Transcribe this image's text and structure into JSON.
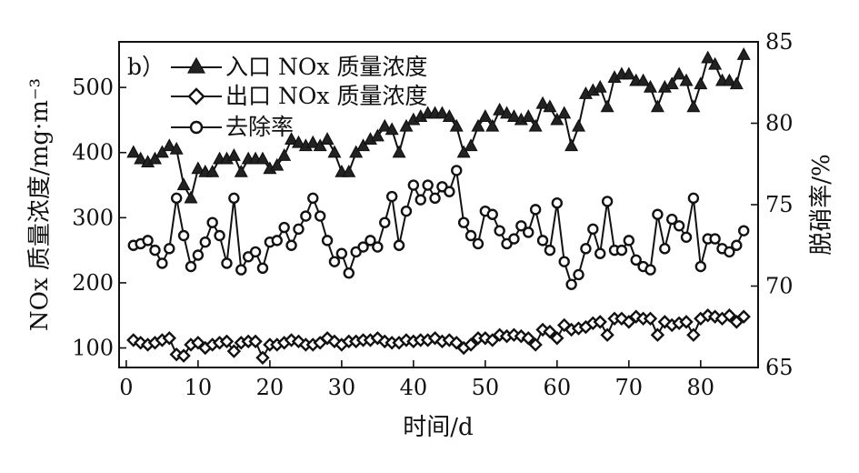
{
  "chart_data": {
    "type": "line",
    "panel_label": "b）",
    "xlabel": "时间/d",
    "ylabel_left": "NOx 质量浓度/mg·m⁻³",
    "ylabel_right": "脱硝率/%",
    "xlim": [
      -1,
      88
    ],
    "ylim_left": [
      70,
      570
    ],
    "ylim_right": [
      65,
      85
    ],
    "x_ticks": [
      0,
      10,
      20,
      30,
      40,
      50,
      60,
      70,
      80
    ],
    "y_left_ticks": [
      100,
      200,
      300,
      400,
      500
    ],
    "y_right_ticks": [
      65,
      70,
      75,
      80,
      85
    ],
    "legend_position": "top-left",
    "series": [
      {
        "name": "入口 NOx 质量浓度",
        "axis": "left",
        "marker": "triangle",
        "x": [
          1,
          2,
          3,
          4,
          5,
          6,
          7,
          8,
          9,
          10,
          11,
          12,
          13,
          14,
          15,
          16,
          17,
          18,
          19,
          20,
          21,
          22,
          23,
          24,
          25,
          26,
          27,
          28,
          29,
          30,
          31,
          32,
          33,
          34,
          35,
          36,
          37,
          38,
          39,
          40,
          41,
          42,
          43,
          44,
          45,
          46,
          47,
          48,
          49,
          50,
          51,
          52,
          53,
          54,
          55,
          56,
          57,
          58,
          59,
          60,
          61,
          62,
          63,
          64,
          65,
          66,
          67,
          68,
          69,
          70,
          71,
          72,
          73,
          74,
          75,
          76,
          77,
          78,
          79,
          80,
          81,
          82,
          83,
          84,
          85,
          86
        ],
        "values": [
          400,
          390,
          385,
          390,
          400,
          410,
          405,
          350,
          330,
          375,
          370,
          370,
          390,
          390,
          395,
          370,
          390,
          390,
          390,
          375,
          380,
          395,
          420,
          415,
          410,
          415,
          410,
          420,
          400,
          370,
          370,
          400,
          410,
          420,
          425,
          440,
          435,
          400,
          440,
          450,
          455,
          460,
          460,
          460,
          455,
          440,
          400,
          410,
          440,
          455,
          440,
          465,
          460,
          455,
          450,
          455,
          440,
          475,
          470,
          450,
          460,
          410,
          440,
          490,
          495,
          500,
          470,
          515,
          520,
          520,
          510,
          510,
          500,
          470,
          500,
          505,
          520,
          510,
          470,
          505,
          545,
          535,
          510,
          510,
          505,
          550
        ]
      },
      {
        "name": "出口 NOx 质量浓度",
        "axis": "left",
        "marker": "diamond",
        "x": [
          1,
          2,
          3,
          4,
          5,
          6,
          7,
          8,
          9,
          10,
          11,
          12,
          13,
          14,
          15,
          16,
          17,
          18,
          19,
          20,
          21,
          22,
          23,
          24,
          25,
          26,
          27,
          28,
          29,
          30,
          31,
          32,
          33,
          34,
          35,
          36,
          37,
          38,
          39,
          40,
          41,
          42,
          43,
          44,
          45,
          46,
          47,
          48,
          49,
          50,
          51,
          52,
          53,
          54,
          55,
          56,
          57,
          58,
          59,
          60,
          61,
          62,
          63,
          64,
          65,
          66,
          67,
          68,
          69,
          70,
          71,
          72,
          73,
          74,
          75,
          76,
          77,
          78,
          79,
          80,
          81,
          82,
          83,
          84,
          85,
          86
        ],
        "values": [
          112,
          108,
          105,
          108,
          112,
          115,
          90,
          88,
          105,
          108,
          100,
          105,
          108,
          110,
          95,
          108,
          110,
          110,
          85,
          105,
          105,
          108,
          112,
          110,
          105,
          105,
          108,
          115,
          110,
          105,
          110,
          110,
          112,
          112,
          115,
          110,
          108,
          108,
          112,
          110,
          112,
          112,
          115,
          110,
          112,
          108,
          100,
          105,
          115,
          115,
          112,
          120,
          118,
          120,
          118,
          115,
          105,
          128,
          125,
          115,
          135,
          128,
          130,
          132,
          138,
          140,
          120,
          145,
          145,
          140,
          148,
          145,
          145,
          120,
          140,
          135,
          138,
          140,
          120,
          145,
          150,
          148,
          145,
          150,
          140,
          148
        ]
      },
      {
        "name": "去除率",
        "axis": "right",
        "marker": "circle",
        "x": [
          1,
          2,
          3,
          4,
          5,
          6,
          7,
          8,
          9,
          10,
          11,
          12,
          13,
          14,
          15,
          16,
          17,
          18,
          19,
          20,
          21,
          22,
          23,
          24,
          25,
          26,
          27,
          28,
          29,
          30,
          31,
          32,
          33,
          34,
          35,
          36,
          37,
          38,
          39,
          40,
          41,
          42,
          43,
          44,
          45,
          46,
          47,
          48,
          49,
          50,
          51,
          52,
          53,
          54,
          55,
          56,
          57,
          58,
          59,
          60,
          61,
          62,
          63,
          64,
          65,
          66,
          67,
          68,
          69,
          70,
          71,
          72,
          73,
          74,
          75,
          76,
          77,
          78,
          79,
          80,
          81,
          82,
          83,
          84,
          85,
          86
        ],
        "values": [
          72.5,
          72.6,
          72.8,
          72.2,
          71.4,
          72.3,
          75.4,
          73.1,
          71.2,
          71.9,
          72.7,
          73.9,
          73.1,
          71.4,
          75.4,
          71.0,
          71.8,
          72.1,
          71.1,
          72.7,
          72.8,
          73.6,
          72.5,
          73.5,
          74.3,
          75.4,
          74.3,
          72.8,
          71.5,
          72.0,
          70.8,
          72.1,
          72.4,
          72.8,
          72.4,
          73.9,
          75.5,
          72.5,
          74.6,
          76.2,
          75.3,
          76.2,
          75.4,
          76.1,
          75.8,
          77.1,
          73.9,
          73.1,
          72.6,
          74.6,
          74.4,
          73.4,
          72.6,
          72.9,
          73.7,
          73.3,
          74.7,
          72.8,
          72.2,
          75.1,
          71.5,
          70.1,
          70.7,
          72.3,
          73.5,
          72.0,
          75.2,
          72.2,
          72.2,
          72.8,
          71.6,
          71.2,
          71.0,
          74.4,
          72.3,
          74.1,
          73.7,
          73.0,
          75.4,
          71.2,
          72.9,
          72.9,
          72.3,
          72.1,
          72.5,
          73.4
        ]
      }
    ]
  }
}
